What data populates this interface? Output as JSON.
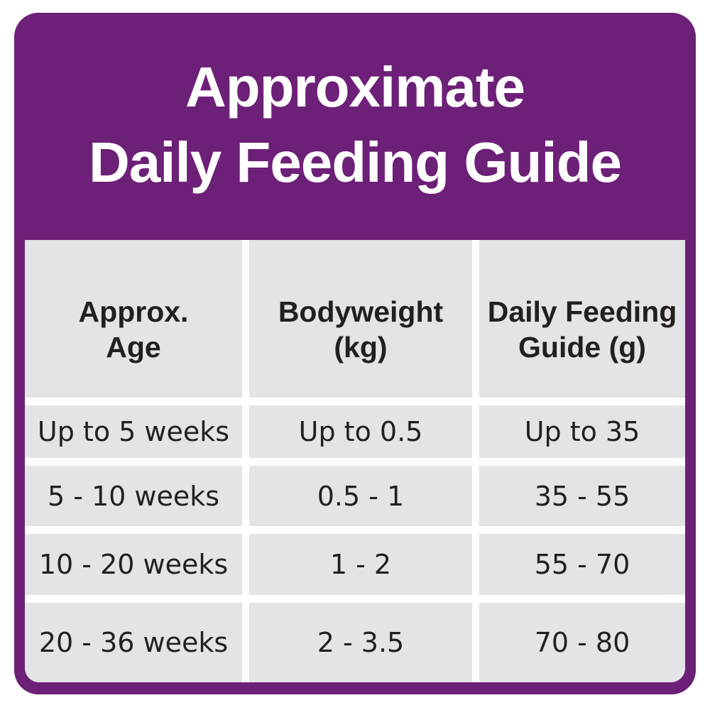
{
  "ui": {
    "title": {
      "line1": "Approximate",
      "line2": "Daily Feeding Guide"
    },
    "table": {
      "headers": [
        {
          "line1": "Approx.",
          "line2": "Age"
        },
        {
          "line1": "Bodyweight",
          "line2": "(kg)"
        },
        {
          "line1": "Daily Feeding",
          "line2": "Guide (g)"
        }
      ]
    },
    "colors": {
      "panel_purple": "#6D2077",
      "cell_gray": "#E4E3E5",
      "text_dark": "#231F20",
      "gap_white": "#FFFFFF",
      "title_white": "#FFFFFF"
    }
  },
  "chart_data": {
    "type": "table",
    "title": "Approximate Daily Feeding Guide",
    "columns": [
      "Approx. Age",
      "Bodyweight (kg)",
      "Daily Feeding Guide (g)"
    ],
    "rows": [
      [
        "Up to 5 weeks",
        "Up to 0.5",
        "Up to 35"
      ],
      [
        "5 - 10 weeks",
        "0.5 - 1",
        "35 - 55"
      ],
      [
        "10 - 20 weeks",
        "1 - 2",
        "55 - 70"
      ],
      [
        "20 - 36 weeks",
        "2 - 3.5",
        "70 - 80"
      ]
    ]
  }
}
